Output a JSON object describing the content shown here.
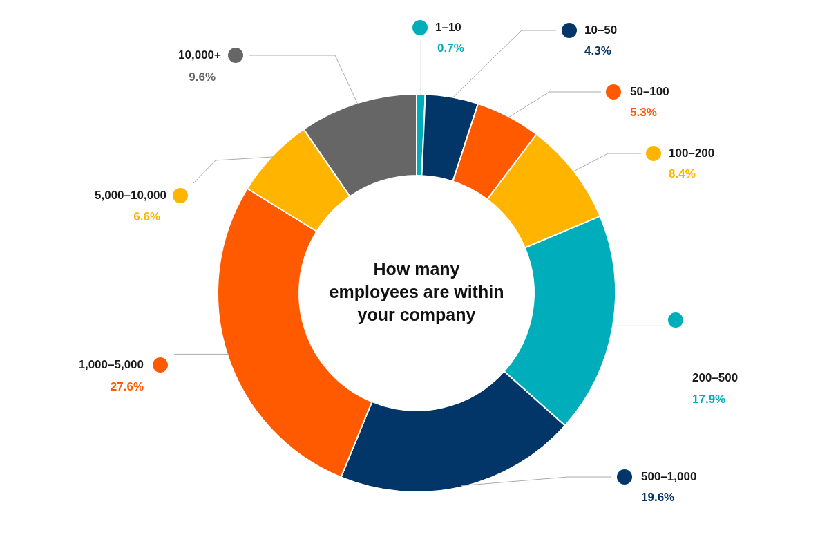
{
  "chart_data": {
    "type": "doughnut",
    "title": "How many\nemployees are within\nyour company",
    "categories": [
      "1–10",
      "10–50",
      "50–100",
      "100–200",
      "200–500",
      "500–1,000",
      "1,000–5,000",
      "5,000–10,000",
      "10,000+"
    ],
    "values": [
      0.7,
      4.3,
      5.3,
      8.4,
      17.9,
      19.6,
      27.6,
      6.6,
      9.6
    ],
    "value_labels": [
      "0.7%",
      "4.3%",
      "5.3%",
      "8.4%",
      "17.9%",
      "19.6%",
      "27.6%",
      "6.6%",
      "9.6%"
    ],
    "colors": [
      "#00adbb",
      "#023668",
      "#ff5a00",
      "#ffb400",
      "#00adbb",
      "#023668",
      "#ff5a00",
      "#ffb400",
      "#666666"
    ],
    "data_labels": true
  }
}
